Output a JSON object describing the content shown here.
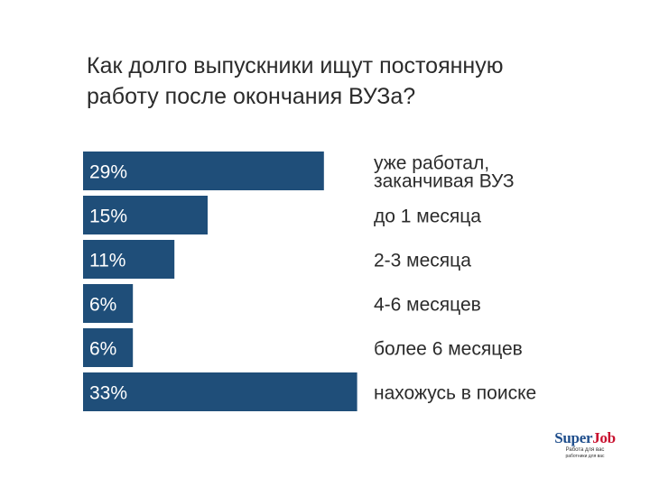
{
  "title_lines": [
    "Как долго выпускники ищут постоянную",
    "работу после окончания ВУЗа?"
  ],
  "colors": {
    "bar": "#1f4e79",
    "text": "#2b2b2b"
  },
  "chart_data": {
    "type": "bar",
    "orientation": "horizontal",
    "unit": "%",
    "categories": [
      [
        "уже работал,",
        "заканчивая ВУЗ"
      ],
      [
        "до 1 месяца"
      ],
      [
        "2-3 месяца"
      ],
      [
        "4-6 месяцев"
      ],
      [
        "более 6 месяцев"
      ],
      [
        "нахожусь в поиске"
      ]
    ],
    "values": [
      29,
      15,
      11,
      6,
      6,
      33
    ],
    "value_labels": [
      "29%",
      "15%",
      "11%",
      "6%",
      "6%",
      "33%"
    ],
    "grid": false,
    "legend": "none"
  },
  "logo": {
    "name_part1": "Super",
    "name_part2": "Job",
    "tagline1": "Работа для вас",
    "tagline2": "работники для вас"
  }
}
